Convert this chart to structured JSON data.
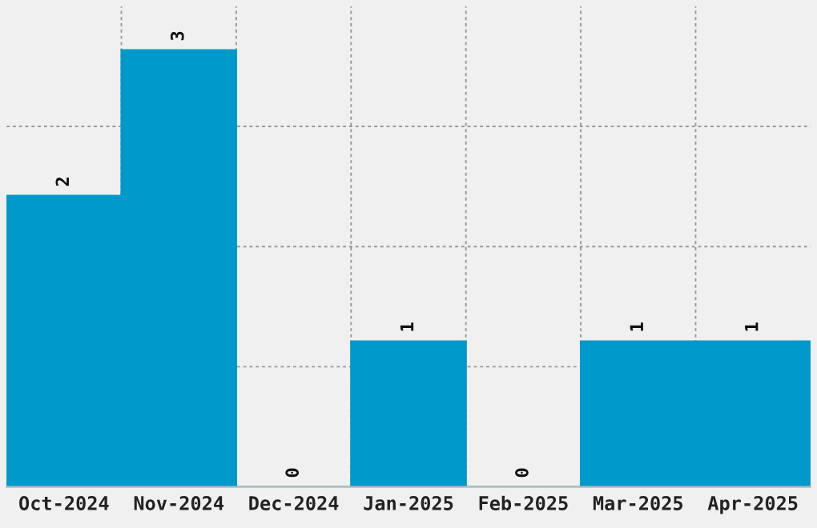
{
  "chart_data": {
    "type": "bar",
    "categories": [
      "Oct-2024",
      "Nov-2024",
      "Dec-2024",
      "Jan-2025",
      "Feb-2025",
      "Mar-2025",
      "Apr-2025"
    ],
    "values": [
      2,
      3,
      0,
      1,
      0,
      1,
      1
    ],
    "color": "#0099cc",
    "ylim": [
      0,
      3.3
    ],
    "yticks": [
      {
        "value": 0.825,
        "label": null
      },
      {
        "value": 1.65,
        "label": null
      },
      {
        "value": 2.475,
        "label": null
      }
    ],
    "grid": true,
    "data_labels": true,
    "tick_labels": "x"
  }
}
